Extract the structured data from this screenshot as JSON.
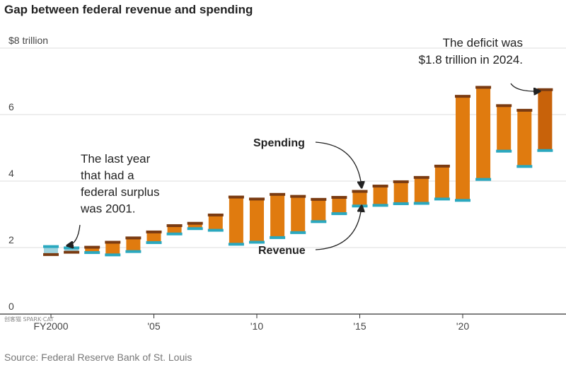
{
  "title": "Gap between federal revenue and spending",
  "source": "Source: Federal Reserve Bank of St. Louis",
  "watermark": "创客猫 SPARK·CAT",
  "annotations": {
    "surplus": [
      "The last year",
      "that had a",
      "federal surplus",
      "was 2001."
    ],
    "deficit": [
      "The deficit was",
      "$1.8 trillion in 2024."
    ],
    "spending_label": "Spending",
    "revenue_label": "Revenue"
  },
  "colors": {
    "gap_fill": "#e07b0f",
    "gap_fill_latest": "#c8620a",
    "surplus_fill": "#9fd3de",
    "spending_cap": "#7a3b12",
    "revenue_cap": "#2aa8bf",
    "grid": "#dddddd",
    "axis": "#333333"
  },
  "chart_data": {
    "type": "floating-bar",
    "title": "Gap between federal revenue and spending",
    "x": [
      2000,
      2001,
      2002,
      2003,
      2004,
      2005,
      2006,
      2007,
      2008,
      2009,
      2010,
      2011,
      2012,
      2013,
      2014,
      2015,
      2016,
      2017,
      2018,
      2019,
      2020,
      2021,
      2022,
      2023,
      2024
    ],
    "xticks": [
      {
        "value": 2000,
        "label": "FY2000"
      },
      {
        "value": 2005,
        "label": "'05"
      },
      {
        "value": 2010,
        "label": "'10"
      },
      {
        "value": 2015,
        "label": "'15"
      },
      {
        "value": 2020,
        "label": "'20"
      }
    ],
    "yticks": [
      {
        "value": 0,
        "label": "0"
      },
      {
        "value": 2,
        "label": "2"
      },
      {
        "value": 4,
        "label": "4"
      },
      {
        "value": 6,
        "label": "6"
      },
      {
        "value": 8,
        "label": "$8 trillion"
      }
    ],
    "ylim": [
      0,
      8
    ],
    "grid": true,
    "series": [
      {
        "name": "Spending",
        "values": [
          1.79,
          1.86,
          2.01,
          2.16,
          2.29,
          2.47,
          2.66,
          2.73,
          2.98,
          3.52,
          3.46,
          3.6,
          3.54,
          3.45,
          3.51,
          3.69,
          3.85,
          3.98,
          4.11,
          4.45,
          6.55,
          6.82,
          6.27,
          6.13,
          6.75
        ]
      },
      {
        "name": "Revenue",
        "values": [
          2.03,
          1.99,
          1.85,
          1.78,
          1.88,
          2.15,
          2.41,
          2.57,
          2.52,
          2.1,
          2.16,
          2.3,
          2.45,
          2.78,
          3.02,
          3.25,
          3.27,
          3.32,
          3.33,
          3.46,
          3.42,
          4.05,
          4.9,
          4.44,
          4.92
        ]
      }
    ]
  }
}
